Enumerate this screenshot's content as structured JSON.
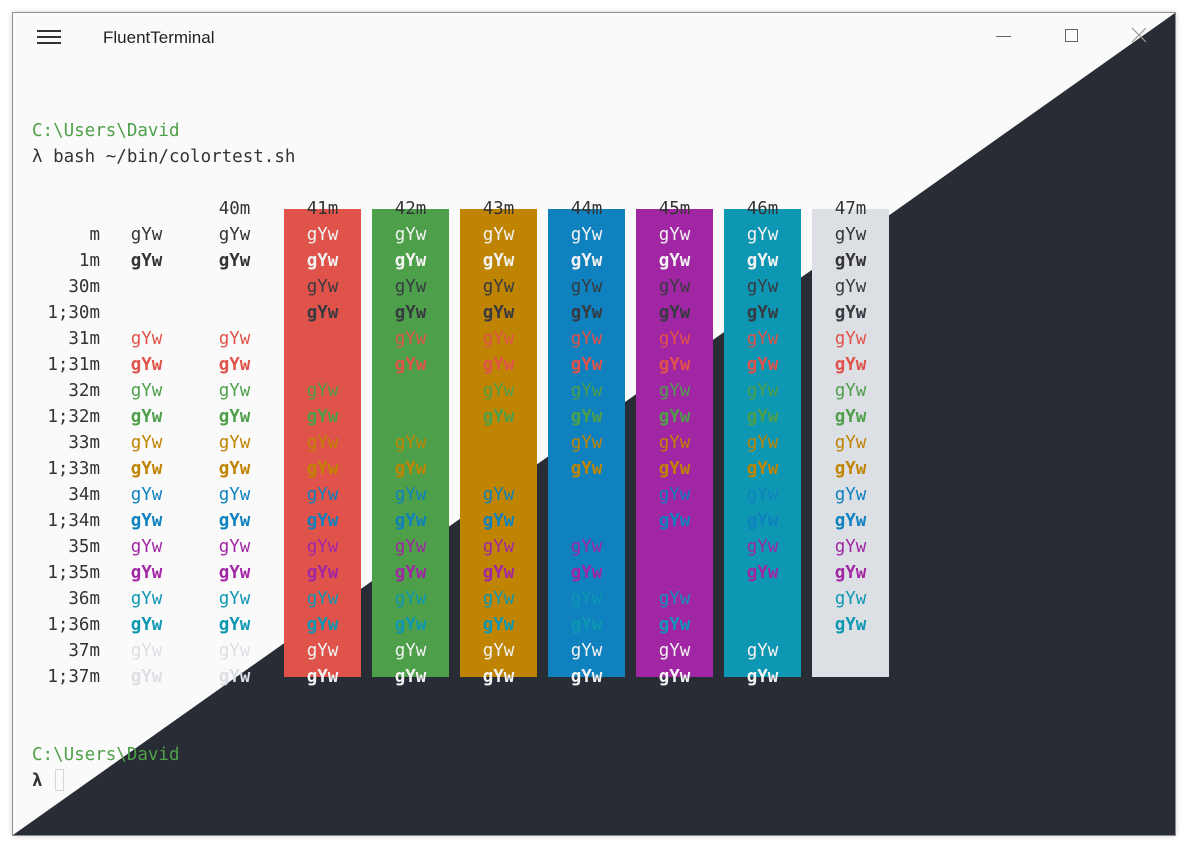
{
  "window": {
    "title": "FluentTerminal"
  },
  "icons": {
    "menu": "hamburger-icon",
    "minimize": "minimize-icon",
    "maximize": "maximize-icon",
    "close": "close-icon"
  },
  "terminal": {
    "prompt_path": "C:\\Users\\David",
    "command_line": "λ bash ~/bin/colortest.sh",
    "prompt2_path": "C:\\Users\\David",
    "prompt2_symbol": "λ",
    "sample_text": "gYw",
    "bg_headers": [
      "40m",
      "41m",
      "42m",
      "43m",
      "44m",
      "45m",
      "46m",
      "47m"
    ],
    "row_labels": [
      "m",
      "1m",
      "30m",
      "1;30m",
      "31m",
      "1;31m",
      "32m",
      "1;32m",
      "33m",
      "1;33m",
      "34m",
      "1;34m",
      "35m",
      "1;35m",
      "36m",
      "1;36m",
      "37m",
      "1;37m"
    ]
  },
  "colors": {
    "red": "#e0534a",
    "green": "#4e9f49",
    "yellow": "#c08403",
    "blue": "#0e81be",
    "magenta": "#a126a4",
    "cyan": "#0d97b2",
    "white": "#dcdfe4",
    "black": "#373a40",
    "default_fg": "#333333",
    "prompt_green": "#4fa04a",
    "dark_bg": "#282c34"
  }
}
